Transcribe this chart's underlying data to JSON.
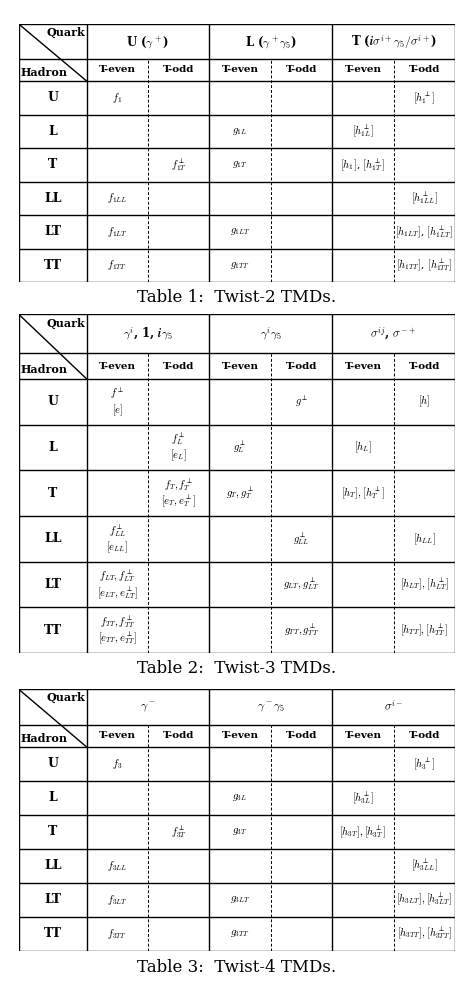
{
  "tables": [
    {
      "title": "Table 1:  Twist-2 TMDs.",
      "col_header": [
        "U ($\\boldsymbol{\\gamma^+}$)",
        "L ($\\boldsymbol{\\gamma^+\\gamma_5}$)",
        "T ($\\boldsymbol{i\\sigma^{i+}\\gamma_5 / \\sigma^{i+}}$)"
      ],
      "col_header_span": [
        2,
        2,
        2
      ],
      "subheader": [
        "T-even",
        "T-odd",
        "T-even",
        "T-odd",
        "T-even",
        "T-odd"
      ],
      "rows": [
        [
          "U",
          "$f_1$",
          "",
          "",
          "",
          "",
          "$[h_1^\\perp]$"
        ],
        [
          "L",
          "",
          "",
          "$g_{1L}$",
          "",
          "$[h_{1L}^\\perp]$",
          ""
        ],
        [
          "T",
          "",
          "$f_{1T}^\\perp$",
          "$g_{1T}$",
          "",
          "$[h_1]$, $[h_{1T}^\\perp]$",
          ""
        ],
        [
          "LL",
          "$f_{1LL}$",
          "",
          "",
          "",
          "",
          "$[h_{1LL}^\\perp]$"
        ],
        [
          "LT",
          "$f_{1LT}$",
          "",
          "$g_{1LT}$",
          "",
          "",
          "$[h_{1LT}]$, $[h_{1LT}^\\perp]$"
        ],
        [
          "TT",
          "$f_{1TT}$",
          "",
          "$g_{1TT}$",
          "",
          "",
          "$[h_{1TT}]$, $[h_{1TT}^\\perp]$"
        ]
      ]
    },
    {
      "title": "Table 2:  Twist-3 TMDs.",
      "col_header": [
        "$\\boldsymbol{\\gamma^i}$, 1, $\\boldsymbol{i\\gamma_5}$",
        "$\\boldsymbol{\\gamma^i\\gamma_5}$",
        "$\\boldsymbol{\\sigma^{ij}}$, $\\boldsymbol{\\sigma^{-+}}$"
      ],
      "col_header_span": [
        2,
        2,
        2
      ],
      "subheader": [
        "T-even",
        "T-odd",
        "T-even",
        "T-odd",
        "T-even",
        "T-odd"
      ],
      "rows": [
        [
          "U",
          "$f^\\perp$\n$[e]$",
          "",
          "",
          "$g^\\perp$",
          "",
          "$[h]$"
        ],
        [
          "L",
          "",
          "$f_L^\\perp$\n$[e_L]$",
          "$g_L^\\perp$",
          "",
          "$[h_L]$",
          ""
        ],
        [
          "T",
          "",
          "$f_T, f_T^\\perp$\n$[e_T, e_T^\\perp]$",
          "$g_T, g_T^\\perp$",
          "",
          "$[h_T], [h_T^\\perp]$",
          ""
        ],
        [
          "LL",
          "$f_{LL}^\\perp$\n$[e_{LL}]$",
          "",
          "",
          "$g_{LL}^\\perp$",
          "",
          "$[h_{LL}]$"
        ],
        [
          "LT",
          "$f_{LT}, f_{LT}^\\perp$\n$[e_{LT}, e_{LT}^\\perp]$",
          "",
          "",
          "$g_{LT}, g_{LT}^\\perp$",
          "",
          "$[h_{LT}], [h_{LT}^\\perp]$"
        ],
        [
          "TT",
          "$f_{TT}, f_{TT}^\\perp$\n$[e_{TT}, e_{TT}^\\perp]$",
          "",
          "",
          "$g_{TT}, g_{TT}^\\perp$",
          "",
          "$[h_{TT}], [h_{TT}^\\perp]$"
        ]
      ]
    },
    {
      "title": "Table 3:  Twist-4 TMDs.",
      "col_header": [
        "$\\boldsymbol{\\gamma^-}$",
        "$\\boldsymbol{\\gamma^-\\gamma_5}$",
        "$\\boldsymbol{\\sigma^{i-}}$"
      ],
      "col_header_span": [
        2,
        2,
        2
      ],
      "subheader": [
        "T-even",
        "T-odd",
        "T-even",
        "T-odd",
        "T-even",
        "T-odd"
      ],
      "rows": [
        [
          "U",
          "$f_3$",
          "",
          "",
          "",
          "",
          "$[h_3^\\perp]$"
        ],
        [
          "L",
          "",
          "",
          "$g_{3L}$",
          "",
          "$[h_{3L}^\\perp]$",
          ""
        ],
        [
          "T",
          "",
          "$f_{3T}^\\perp$",
          "$g_{3T}$",
          "",
          "$[h_{3T}], [h_{3T}^\\perp]$",
          ""
        ],
        [
          "LL",
          "$f_{3LL}$",
          "",
          "",
          "",
          "",
          "$[h_{3LL}^\\perp]$"
        ],
        [
          "LT",
          "$f_{3LT}$",
          "",
          "$g_{3LT}$",
          "",
          "",
          "$[h_{3LT}], [h_{3LT}^\\perp]$"
        ],
        [
          "TT",
          "$f_{3TT}$",
          "",
          "$g_{3TT}$",
          "",
          "",
          "$[h_{3TT}], [h_{3TT}^\\perp]$"
        ]
      ]
    }
  ],
  "bg_color": "white",
  "figsize": [
    4.74,
    10.08
  ],
  "dpi": 100
}
